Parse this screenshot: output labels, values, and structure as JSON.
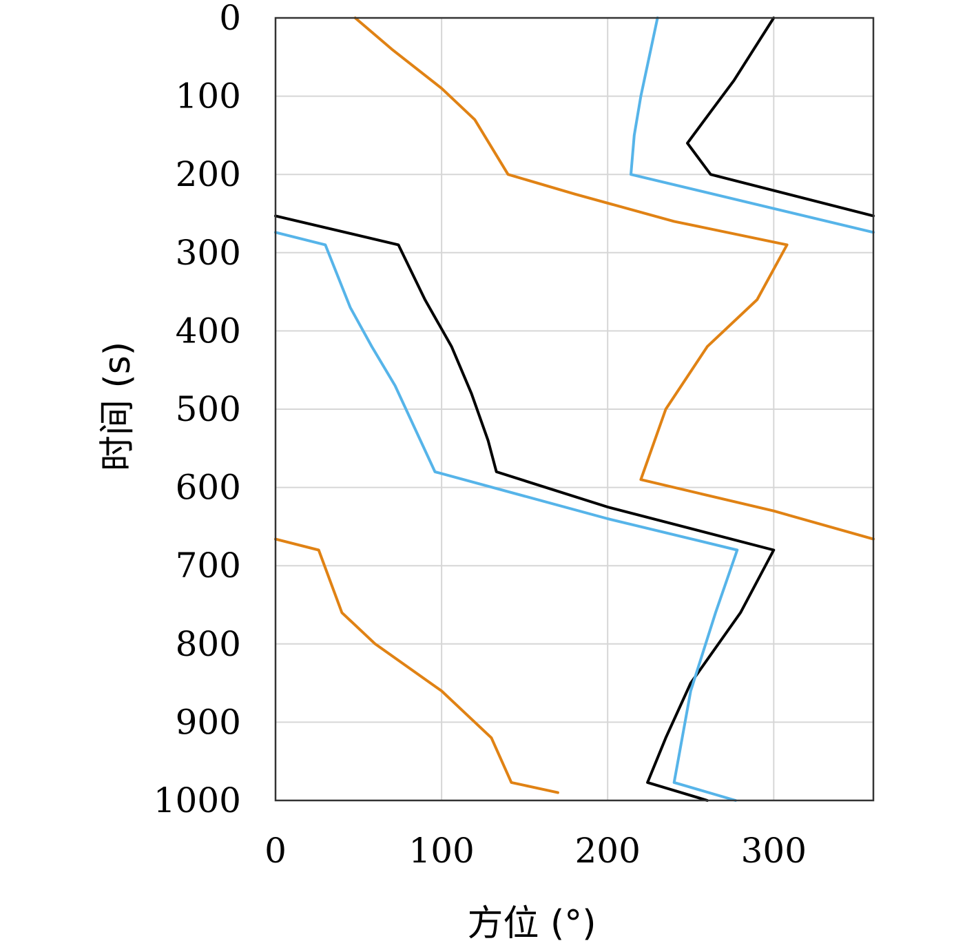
{
  "chart_data": {
    "type": "line",
    "xlabel": "方位 (°)",
    "ylabel": "时间 (s)",
    "xlim": [
      0,
      360
    ],
    "ylim": [
      0,
      1000
    ],
    "y_inverted": true,
    "xticks": [
      0,
      100,
      200,
      300
    ],
    "yticks": [
      0,
      100,
      200,
      300,
      400,
      500,
      600,
      700,
      800,
      900,
      1000
    ],
    "grid": true,
    "legend": "none",
    "series": [
      {
        "color": "#000000",
        "segments": [
          [
            [
              300,
              0
            ],
            [
              288,
              40
            ],
            [
              276,
              80
            ],
            [
              262,
              120
            ],
            [
              248,
              160
            ],
            [
              262,
              200
            ],
            [
              360,
              253
            ]
          ],
          [
            [
              0,
              253
            ],
            [
              74,
              290
            ],
            [
              90,
              360
            ],
            [
              106,
              420
            ],
            [
              118,
              480
            ],
            [
              128,
              540
            ],
            [
              133,
              580
            ],
            [
              200,
              625
            ],
            [
              300,
              680
            ],
            [
              280,
              760
            ],
            [
              250,
              850
            ],
            [
              235,
              920
            ],
            [
              224,
              977
            ],
            [
              260,
              1000
            ]
          ]
        ]
      },
      {
        "color": "#56b4e9",
        "segments": [
          [
            [
              230,
              0
            ],
            [
              225,
              50
            ],
            [
              220,
              100
            ],
            [
              216,
              150
            ],
            [
              214,
              200
            ],
            [
              360,
              274
            ]
          ],
          [
            [
              0,
              274
            ],
            [
              30,
              290
            ],
            [
              45,
              370
            ],
            [
              58,
              420
            ],
            [
              72,
              470
            ],
            [
              96,
              580
            ],
            [
              200,
              640
            ],
            [
              278,
              680
            ],
            [
              265,
              760
            ],
            [
              250,
              860
            ],
            [
              240,
              977
            ],
            [
              277,
              1000
            ]
          ]
        ]
      },
      {
        "color": "#e08214",
        "segments": [
          [
            [
              48,
              0
            ],
            [
              70,
              40
            ],
            [
              100,
              90
            ],
            [
              120,
              130
            ],
            [
              140,
              200
            ],
            [
              180,
              225
            ],
            [
              240,
              260
            ],
            [
              308,
              290
            ],
            [
              290,
              360
            ],
            [
              260,
              420
            ],
            [
              235,
              500
            ],
            [
              220,
              590
            ],
            [
              300,
              630
            ],
            [
              360,
              666
            ]
          ],
          [
            [
              0,
              666
            ],
            [
              26,
              680
            ],
            [
              40,
              760
            ],
            [
              60,
              800
            ],
            [
              100,
              860
            ],
            [
              130,
              920
            ],
            [
              142,
              977
            ],
            [
              170,
              990
            ]
          ]
        ]
      }
    ]
  }
}
